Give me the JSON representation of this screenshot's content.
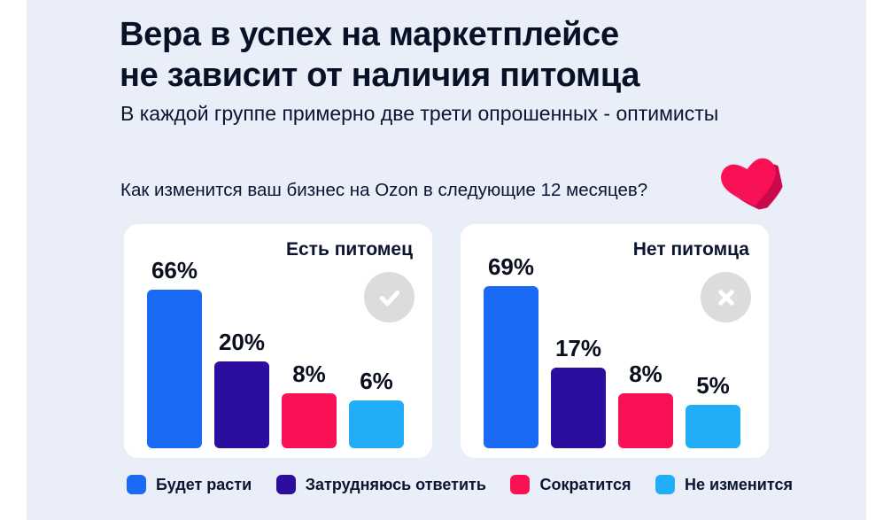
{
  "page": {
    "bg_color": "#e9eef9",
    "title_lines": [
      "Вера в успех на маркетплейсе",
      "не зависит от наличия питомца"
    ],
    "subtitle": "В каждой группе примерно две трети опрошенных - оптимисты",
    "question": "Как изменится ваш бизнес на Ozon в следующие 12 месяцев?"
  },
  "colors": {
    "grow": "#1b6af5",
    "undecided": "#2b0e9e",
    "shrink": "#f91155",
    "no_change": "#22aef6",
    "icon_circle": "#dcdcdc",
    "heart": "#f91155",
    "heart_shadow": "#c9094b"
  },
  "legend": [
    {
      "label": "Будет расти",
      "color": "#1b6af5"
    },
    {
      "label": "Затрудняюсь ответить",
      "color": "#2b0e9e"
    },
    {
      "label": "Сократится",
      "color": "#f91155"
    },
    {
      "label": "Не изменится",
      "color": "#22aef6"
    }
  ],
  "chart_data": [
    {
      "type": "bar",
      "title": "Есть питомец",
      "icon": "check-circle-icon",
      "categories": [
        "Будет расти",
        "Затрудняюсь ответить",
        "Сократится",
        "Не изменится"
      ],
      "values": [
        66,
        20,
        8,
        6
      ],
      "value_labels": [
        "66%",
        "20%",
        "8%",
        "6%"
      ],
      "colors": [
        "#1b6af5",
        "#2b0e9e",
        "#f91155",
        "#22aef6"
      ],
      "ylim": [
        0,
        100
      ],
      "grid": false,
      "legend_position": "bottom-shared"
    },
    {
      "type": "bar",
      "title": "Нет питомца",
      "icon": "x-circle-icon",
      "categories": [
        "Будет расти",
        "Затрудняюсь ответить",
        "Сократится",
        "Не изменится"
      ],
      "values": [
        69,
        17,
        8,
        5
      ],
      "value_labels": [
        "69%",
        "17%",
        "8%",
        "5%"
      ],
      "colors": [
        "#1b6af5",
        "#2b0e9e",
        "#f91155",
        "#22aef6"
      ],
      "ylim": [
        0,
        100
      ],
      "grid": false,
      "legend_position": "bottom-shared"
    }
  ]
}
